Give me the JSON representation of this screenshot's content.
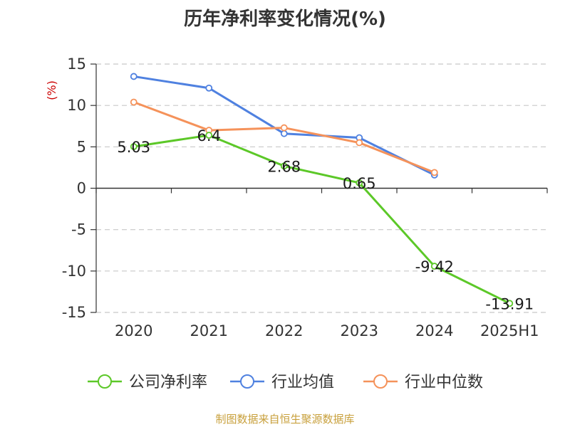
{
  "chart_data": {
    "type": "line",
    "title": "历年净利率变化情况(%)",
    "ylabel": "(%)",
    "xlabel": "",
    "categories": [
      "2020",
      "2021",
      "2022",
      "2023",
      "2024",
      "2025H1"
    ],
    "ylim": [
      -15,
      15
    ],
    "yticks": [
      15,
      10,
      5,
      0,
      -5,
      -10,
      -15
    ],
    "grid": true,
    "legend_position": "bottom",
    "series": [
      {
        "name": "公司净利率",
        "color": "#5cc828",
        "values": [
          5.03,
          6.4,
          2.68,
          0.65,
          -9.42,
          -13.91
        ],
        "labels": [
          "5.03",
          "6.4",
          "2.68",
          "0.65",
          "-9.42",
          "-13.91"
        ]
      },
      {
        "name": "行业均值",
        "color": "#4f81e0",
        "values": [
          13.5,
          12.1,
          6.6,
          6.1,
          1.6,
          null
        ]
      },
      {
        "name": "行业中位数",
        "color": "#f5925a",
        "values": [
          10.4,
          7.0,
          7.3,
          5.5,
          1.9,
          null
        ]
      }
    ]
  },
  "source": "制图数据来自恒生聚源数据库"
}
